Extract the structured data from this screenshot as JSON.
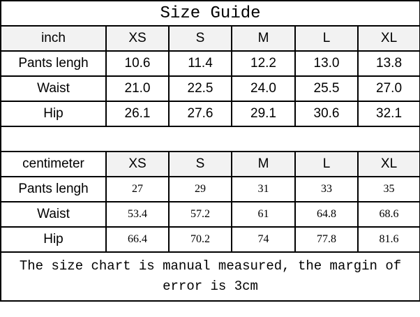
{
  "title": "Size Guide",
  "sizes": [
    "XS",
    "S",
    "M",
    "L",
    "XL"
  ],
  "inch": {
    "unit": "inch",
    "rows": [
      {
        "label": "Pants lengh",
        "values": [
          "10.6",
          "11.4",
          "12.2",
          "13.0",
          "13.8"
        ]
      },
      {
        "label": "Waist",
        "values": [
          "21.0",
          "22.5",
          "24.0",
          "25.5",
          "27.0"
        ]
      },
      {
        "label": "Hip",
        "values": [
          "26.1",
          "27.6",
          "29.1",
          "30.6",
          "32.1"
        ]
      }
    ]
  },
  "cm": {
    "unit": "centimeter",
    "rows": [
      {
        "label": "Pants lengh",
        "values": [
          "27",
          "29",
          "31",
          "33",
          "35"
        ]
      },
      {
        "label": "Waist",
        "values": [
          "53.4",
          "57.2",
          "61",
          "64.8",
          "68.6"
        ]
      },
      {
        "label": "Hip",
        "values": [
          "66.4",
          "70.2",
          "74",
          "77.8",
          "81.6"
        ]
      }
    ]
  },
  "note": "The size chart is manual measured, the margin of error is 3cm"
}
